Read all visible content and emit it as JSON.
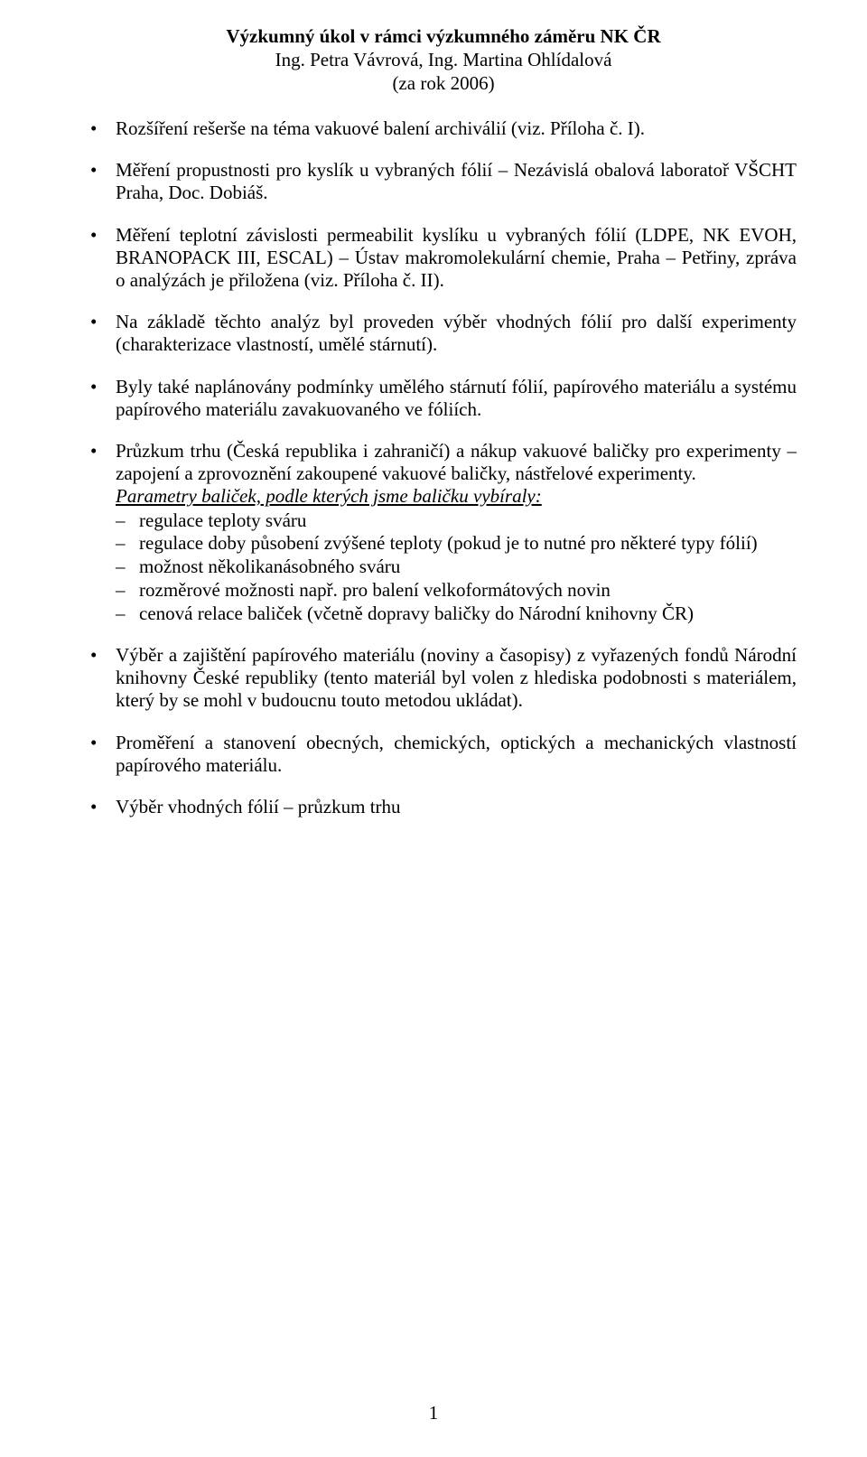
{
  "header": {
    "title": "Výzkumný úkol v rámci výzkumného záměru NK ČR",
    "authors": "Ing. Petra Vávrová, Ing. Martina Ohlídalová",
    "year": "(za rok 2006)"
  },
  "bullets": [
    {
      "text": "Rozšíření rešerše na téma vakuové balení archiválií (viz. Příloha č. I)."
    },
    {
      "text": "Měření propustnosti pro kyslík u vybraných fólií – Nezávislá obalová laboratoř VŠCHT Praha, Doc. Dobiáš."
    },
    {
      "text": "Měření teplotní závislosti permeabilit kyslíku u vybraných fólií (LDPE, NK EVOH, BRANOPACK III, ESCAL) – Ústav makromolekulární chemie, Praha – Petřiny, zpráva o analýzách je přiložena (viz. Příloha č. II)."
    },
    {
      "text": "Na základě těchto analýz byl proveden výběr vhodných fólií pro další experimenty (charakterizace vlastností, umělé stárnutí)."
    },
    {
      "text": "Byly také naplánovány podmínky umělého stárnutí fólií, papírového materiálu a systému papírového materiálu zavakuovaného ve fóliích."
    },
    {
      "text": "Průzkum trhu (Česká republika i zahraničí) a nákup vakuové baličky pro experimenty – zapojení a zprovoznění zakoupené vakuové baličky, nástřelové experimenty.",
      "params_title": "Parametry baliček, podle kterých jsme baličku vybíraly:",
      "dashes": [
        "regulace teploty sváru",
        "regulace doby působení zvýšené teploty (pokud je to nutné pro některé typy fólií)",
        "možnost několikanásobného sváru",
        "rozměrové možnosti např. pro balení velkoformátových novin",
        "cenová relace baliček (včetně dopravy baličky do Národní knihovny ČR)"
      ]
    },
    {
      "text": "Výběr a zajištění papírového materiálu (noviny a časopisy) z vyřazených fondů Národní knihovny České republiky (tento materiál byl volen z hlediska podobnosti s materiálem, který by se mohl v budoucnu touto metodou ukládat)."
    },
    {
      "text": "Proměření a stanovení obecných, chemických, optických a mechanických vlastností papírového materiálu."
    },
    {
      "text": "Výběr vhodných fólií – průzkum trhu"
    }
  ],
  "page_number": "1"
}
